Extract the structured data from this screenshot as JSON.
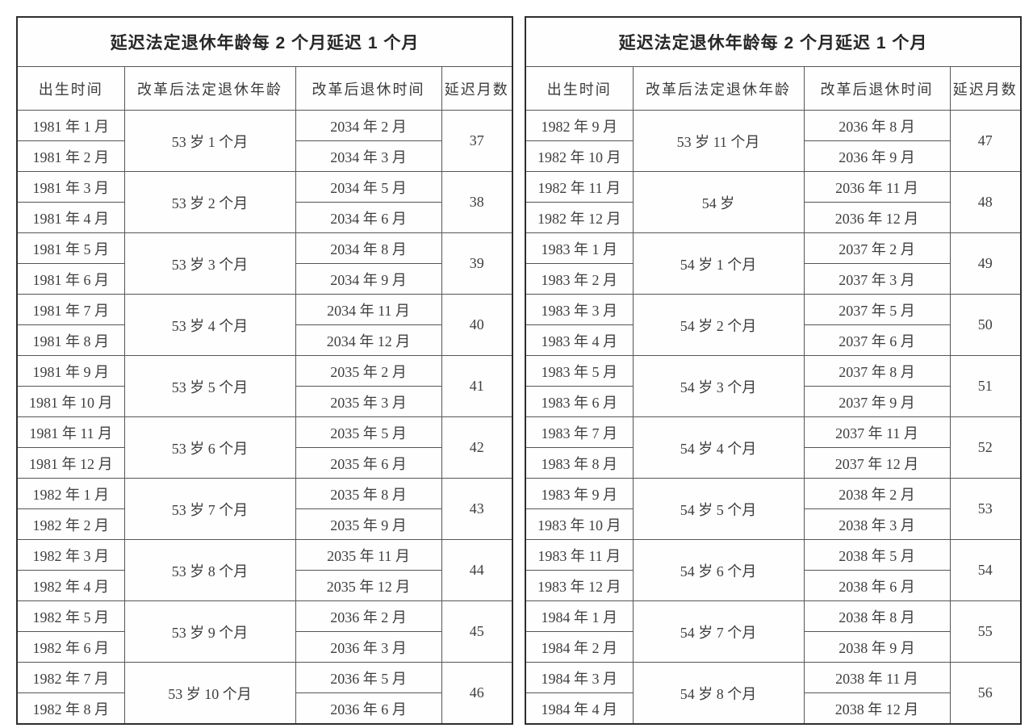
{
  "page": {
    "background": "#ffffff",
    "text_color": "#3e3e3e",
    "border_color": "#565656",
    "outer_border_color": "#2e2e2e"
  },
  "tables": [
    {
      "title": "延迟法定退休年龄每 2 个月延迟 1 个月",
      "columns": [
        "出生时间",
        "改革后法定退休年龄",
        "改革后退休时间",
        "延迟月数"
      ],
      "groups": [
        {
          "births": [
            "1981 年 1 月",
            "1981 年 2 月"
          ],
          "age": "53 岁 1 个月",
          "retire": [
            "2034 年 2 月",
            "2034 年 3 月"
          ],
          "delay": 37
        },
        {
          "births": [
            "1981 年 3 月",
            "1981 年 4 月"
          ],
          "age": "53 岁 2 个月",
          "retire": [
            "2034 年 5 月",
            "2034 年 6 月"
          ],
          "delay": 38
        },
        {
          "births": [
            "1981 年 5 月",
            "1981 年 6 月"
          ],
          "age": "53 岁 3 个月",
          "retire": [
            "2034 年 8 月",
            "2034 年 9 月"
          ],
          "delay": 39
        },
        {
          "births": [
            "1981 年 7 月",
            "1981 年 8 月"
          ],
          "age": "53 岁 4 个月",
          "retire": [
            "2034 年 11 月",
            "2034 年 12 月"
          ],
          "delay": 40
        },
        {
          "births": [
            "1981 年 9 月",
            "1981 年 10 月"
          ],
          "age": "53 岁 5 个月",
          "retire": [
            "2035 年 2 月",
            "2035 年 3 月"
          ],
          "delay": 41
        },
        {
          "births": [
            "1981 年 11 月",
            "1981 年 12 月"
          ],
          "age": "53 岁 6 个月",
          "retire": [
            "2035 年 5 月",
            "2035 年 6 月"
          ],
          "delay": 42
        },
        {
          "births": [
            "1982 年 1 月",
            "1982 年 2 月"
          ],
          "age": "53 岁 7 个月",
          "retire": [
            "2035 年 8 月",
            "2035 年 9 月"
          ],
          "delay": 43
        },
        {
          "births": [
            "1982 年 3 月",
            "1982 年 4 月"
          ],
          "age": "53 岁 8 个月",
          "retire": [
            "2035 年 11 月",
            "2035 年 12 月"
          ],
          "delay": 44
        },
        {
          "births": [
            "1982 年 5 月",
            "1982 年 6 月"
          ],
          "age": "53 岁 9 个月",
          "retire": [
            "2036 年 2 月",
            "2036 年 3 月"
          ],
          "delay": 45
        },
        {
          "births": [
            "1982 年 7 月",
            "1982 年 8 月"
          ],
          "age": "53 岁 10 个月",
          "retire": [
            "2036 年 5 月",
            "2036 年 6 月"
          ],
          "delay": 46
        }
      ]
    },
    {
      "title": "延迟法定退休年龄每 2 个月延迟 1 个月",
      "columns": [
        "出生时间",
        "改革后法定退休年龄",
        "改革后退休时间",
        "延迟月数"
      ],
      "groups": [
        {
          "births": [
            "1982 年 9 月",
            "1982 年 10 月"
          ],
          "age": "53 岁 11 个月",
          "retire": [
            "2036 年 8 月",
            "2036 年 9 月"
          ],
          "delay": 47
        },
        {
          "births": [
            "1982 年 11 月",
            "1982 年 12 月"
          ],
          "age": "54 岁",
          "retire": [
            "2036 年 11 月",
            "2036 年 12 月"
          ],
          "delay": 48
        },
        {
          "births": [
            "1983 年 1 月",
            "1983 年 2 月"
          ],
          "age": "54 岁 1 个月",
          "retire": [
            "2037 年 2 月",
            "2037 年 3 月"
          ],
          "delay": 49
        },
        {
          "births": [
            "1983 年 3 月",
            "1983 年 4 月"
          ],
          "age": "54 岁 2 个月",
          "retire": [
            "2037 年 5 月",
            "2037 年 6 月"
          ],
          "delay": 50
        },
        {
          "births": [
            "1983 年 5 月",
            "1983 年 6 月"
          ],
          "age": "54 岁 3 个月",
          "retire": [
            "2037 年 8 月",
            "2037 年 9 月"
          ],
          "delay": 51
        },
        {
          "births": [
            "1983 年 7 月",
            "1983 年 8 月"
          ],
          "age": "54 岁 4 个月",
          "retire": [
            "2037 年 11 月",
            "2037 年 12 月"
          ],
          "delay": 52
        },
        {
          "births": [
            "1983 年 9 月",
            "1983 年 10 月"
          ],
          "age": "54 岁 5 个月",
          "retire": [
            "2038 年 2 月",
            "2038 年 3 月"
          ],
          "delay": 53
        },
        {
          "births": [
            "1983 年 11 月",
            "1983 年 12 月"
          ],
          "age": "54 岁 6 个月",
          "retire": [
            "2038 年 5 月",
            "2038 年 6 月"
          ],
          "delay": 54
        },
        {
          "births": [
            "1984 年 1 月",
            "1984 年 2 月"
          ],
          "age": "54 岁 7 个月",
          "retire": [
            "2038 年 8 月",
            "2038 年 9 月"
          ],
          "delay": 55
        },
        {
          "births": [
            "1984 年 3 月",
            "1984 年 4 月"
          ],
          "age": "54 岁 8 个月",
          "retire": [
            "2038 年 11 月",
            "2038 年 12 月"
          ],
          "delay": 56
        }
      ]
    }
  ]
}
